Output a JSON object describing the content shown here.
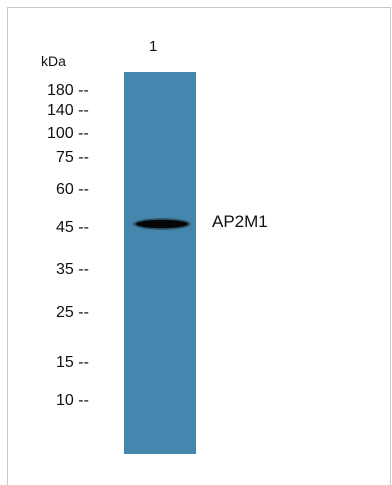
{
  "blot": {
    "unit": "kDa",
    "lanes": [
      {
        "label": "1",
        "color": "#4686ae"
      }
    ],
    "markers": [
      {
        "text": "180 --",
        "kda": 180
      },
      {
        "text": "140 --",
        "kda": 140
      },
      {
        "text": "100 --",
        "kda": 100
      },
      {
        "text": "75 --",
        "kda": 75
      },
      {
        "text": "60 --",
        "kda": 60
      },
      {
        "text": "45 --",
        "kda": 45
      },
      {
        "text": "35 --",
        "kda": 35
      },
      {
        "text": "25 --",
        "kda": 25
      },
      {
        "text": "15 --",
        "kda": 15
      },
      {
        "text": "10 --",
        "kda": 10
      }
    ],
    "band": {
      "label": "AP2M1",
      "lane": 1,
      "kda": 45,
      "color": "#060606"
    }
  }
}
